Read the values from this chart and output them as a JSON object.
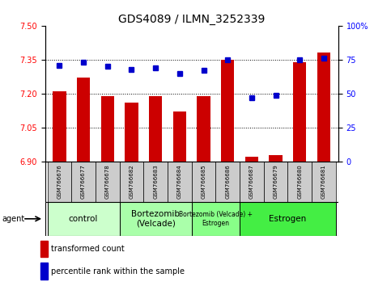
{
  "title": "GDS4089 / ILMN_3252339",
  "samples": [
    "GSM766676",
    "GSM766677",
    "GSM766678",
    "GSM766682",
    "GSM766683",
    "GSM766684",
    "GSM766685",
    "GSM766686",
    "GSM766687",
    "GSM766679",
    "GSM766680",
    "GSM766681"
  ],
  "bar_values": [
    7.21,
    7.27,
    7.19,
    7.16,
    7.19,
    7.12,
    7.19,
    7.35,
    6.92,
    6.93,
    7.34,
    7.38
  ],
  "percentile_values": [
    71,
    73,
    70,
    68,
    69,
    65,
    67,
    75,
    47,
    49,
    75,
    76
  ],
  "ylim_left": [
    6.9,
    7.5
  ],
  "ylim_right": [
    0,
    100
  ],
  "yticks_left": [
    6.9,
    7.05,
    7.2,
    7.35,
    7.5
  ],
  "yticks_right": [
    0,
    25,
    50,
    75,
    100
  ],
  "bar_color": "#cc0000",
  "marker_color": "#0000cc",
  "bar_width": 0.55,
  "groups": [
    {
      "label": "control",
      "start": 0,
      "end": 3,
      "color": "#ccffcc"
    },
    {
      "label": "Bortezomib\n(Velcade)",
      "start": 3,
      "end": 6,
      "color": "#aaffaa"
    },
    {
      "label": "Bortezomib (Velcade) +\nEstrogen",
      "start": 6,
      "end": 8,
      "color": "#88ff88"
    },
    {
      "label": "Estrogen",
      "start": 8,
      "end": 12,
      "color": "#44ee44"
    }
  ],
  "legend_bar_label": "transformed count",
  "legend_marker_label": "percentile rank within the sample",
  "agent_label": "agent",
  "background_color": "#ffffff",
  "plot_bg": "#ffffff",
  "sample_bg": "#cccccc",
  "title_fontsize": 10
}
